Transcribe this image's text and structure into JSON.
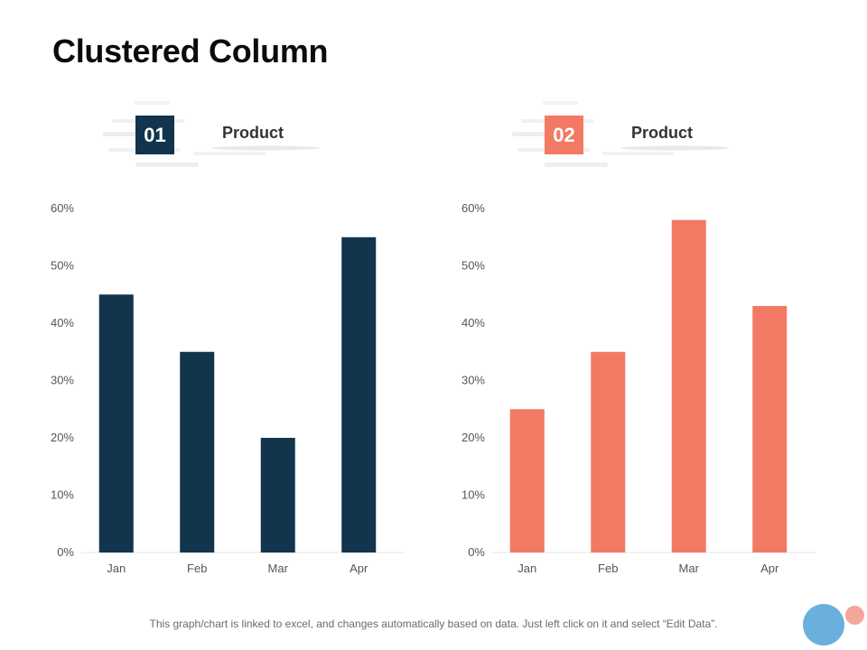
{
  "page": {
    "title": "Clustered Column",
    "footnote": "This graph/chart is linked to excel, and changes automatically based on data. Just left click on it and select “Edit Data”."
  },
  "headers": [
    {
      "number": "01",
      "label": "Product",
      "color": "#12344d"
    },
    {
      "number": "02",
      "label": "Product",
      "color": "#f27a64"
    }
  ],
  "chart_data": [
    {
      "type": "bar",
      "title": "Product",
      "categories": [
        "Jan",
        "Feb",
        "Mar",
        "Apr"
      ],
      "values": [
        45,
        35,
        20,
        55
      ],
      "ylim": [
        0,
        60
      ],
      "yticks": [
        "0%",
        "10%",
        "20%",
        "30%",
        "40%",
        "50%",
        "60%"
      ],
      "xlabel": "",
      "ylabel": "",
      "color": "#12344d",
      "grid": false,
      "legend": "none"
    },
    {
      "type": "bar",
      "title": "Product",
      "categories": [
        "Jan",
        "Feb",
        "Mar",
        "Apr"
      ],
      "values": [
        25,
        35,
        58,
        43
      ],
      "ylim": [
        0,
        60
      ],
      "yticks": [
        "0%",
        "10%",
        "20%",
        "30%",
        "40%",
        "50%",
        "60%"
      ],
      "xlabel": "",
      "ylabel": "",
      "color": "#f27a64",
      "grid": false,
      "legend": "none"
    }
  ]
}
